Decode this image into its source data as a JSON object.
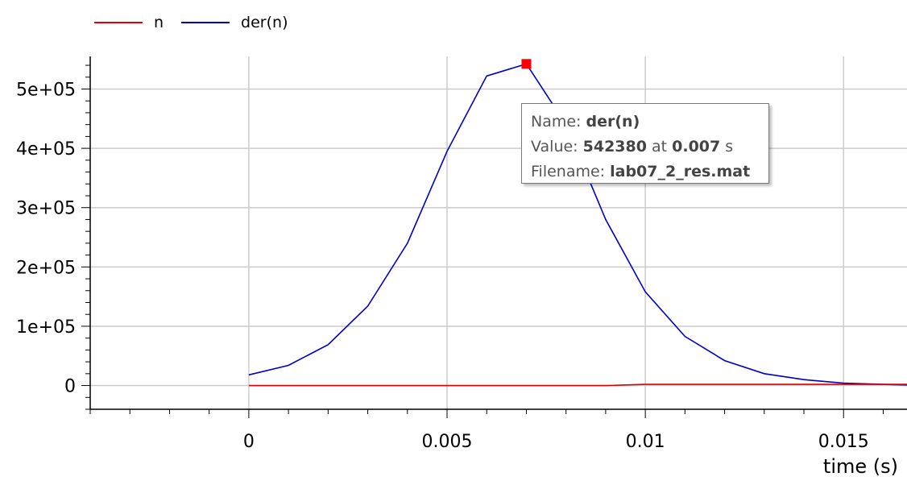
{
  "legend": {
    "items": [
      {
        "label": "n",
        "color": "#e00000"
      },
      {
        "label": "der(n)",
        "color": "#0000c8"
      }
    ]
  },
  "tooltip": {
    "name_label": "Name:",
    "name_value": "der(n)",
    "value_label": "Value:",
    "value_value": "542380",
    "at_label": "at",
    "at_value": "0.007",
    "unit": "s",
    "filename_label": "Filename:",
    "filename_value": "lab07_2_res.mat"
  },
  "chart_data": {
    "type": "line",
    "xlabel": "time (s)",
    "ylabel": "",
    "xlim": [
      -0.004,
      0.0166
    ],
    "ylim": [
      -40000,
      555000
    ],
    "x_ticks": [
      {
        "value": 0,
        "label": "0"
      },
      {
        "value": 0.005,
        "label": "0.005"
      },
      {
        "value": 0.01,
        "label": "0.01"
      },
      {
        "value": 0.015,
        "label": "0.015"
      }
    ],
    "y_ticks": [
      {
        "value": 0,
        "label": "0"
      },
      {
        "value": 100000,
        "label": "1e+05"
      },
      {
        "value": 200000,
        "label": "2e+05"
      },
      {
        "value": 300000,
        "label": "3e+05"
      },
      {
        "value": 400000,
        "label": "4e+05"
      },
      {
        "value": 500000,
        "label": "5e+05"
      }
    ],
    "grid": true,
    "legend_position": "top-left",
    "series": [
      {
        "name": "n",
        "color": "#e00000",
        "x": [
          0,
          0.001,
          0.002,
          0.003,
          0.004,
          0.005,
          0.006,
          0.007,
          0.008,
          0.009,
          0.0095,
          0.01,
          0.011,
          0.012,
          0.013,
          0.014,
          0.015,
          0.0166
        ],
        "y": [
          0,
          0,
          0,
          0,
          0,
          0,
          0,
          0,
          0,
          0,
          1000,
          2000,
          2000,
          2000,
          2000,
          2000,
          2000,
          2000
        ]
      },
      {
        "name": "der(n)",
        "color": "#0000c8",
        "x": [
          0,
          0.001,
          0.002,
          0.003,
          0.004,
          0.005,
          0.006,
          0.007,
          0.008,
          0.009,
          0.01,
          0.011,
          0.012,
          0.013,
          0.014,
          0.015,
          0.016,
          0.0166
        ],
        "y": [
          18000,
          34000,
          69000,
          134000,
          240000,
          395000,
          522000,
          542380,
          440000,
          280000,
          158000,
          83000,
          42000,
          20000,
          10000,
          4000,
          2000,
          1000
        ]
      }
    ],
    "highlight": {
      "series": "der(n)",
      "x": 0.007,
      "y": 542380,
      "color": "#ff0000"
    }
  }
}
